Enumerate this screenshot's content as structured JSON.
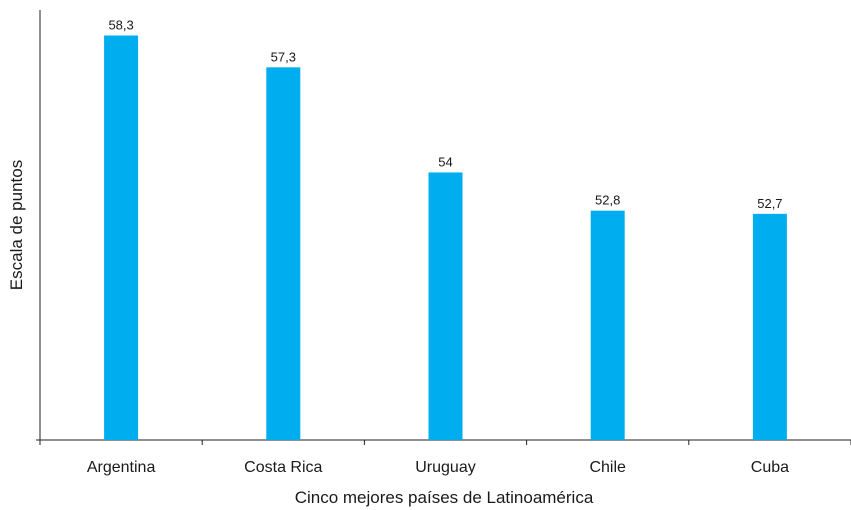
{
  "chart_data": {
    "type": "bar",
    "categories": [
      "Argentina",
      "Costa Rica",
      "Uruguay",
      "Chile",
      "Cuba"
    ],
    "values": [
      58.3,
      57.3,
      54,
      52.8,
      52.7
    ],
    "value_labels": [
      "58,3",
      "57,3",
      "54",
      "52,8",
      "52,7"
    ],
    "title": "",
    "xlabel": "Cinco mejores países de Latinoamérica",
    "ylabel": "Escala de puntos",
    "ylim": [
      45.6,
      59.1
    ],
    "grid": false,
    "legend": "none",
    "bar_color": "#00adef"
  }
}
